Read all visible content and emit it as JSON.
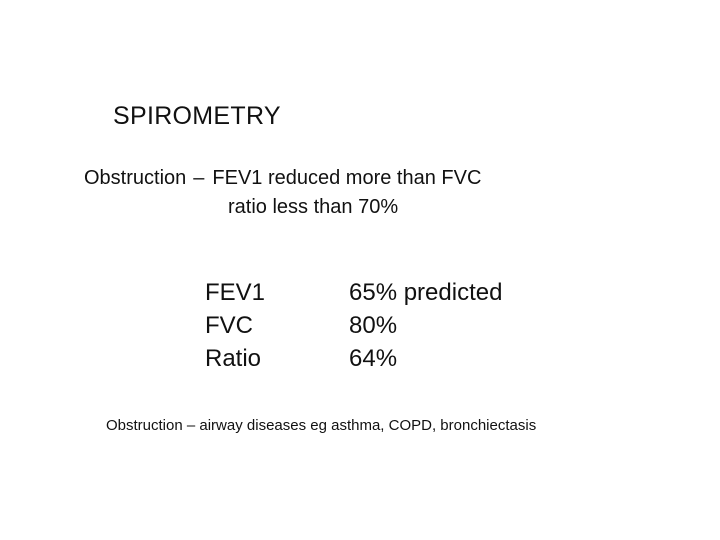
{
  "slide": {
    "title": "SPIROMETRY",
    "definition": {
      "term": "Obstruction",
      "dash": "–",
      "line1": "FEV1 reduced more than FVC",
      "line2": "ratio less than 70%"
    },
    "measurements": [
      {
        "label": "FEV1",
        "value": "65% predicted"
      },
      {
        "label": "FVC",
        "value": "80%"
      },
      {
        "label": "Ratio",
        "value": "64%"
      }
    ],
    "note": "Obstruction – airway diseases eg asthma, COPD, bronchiectasis"
  }
}
